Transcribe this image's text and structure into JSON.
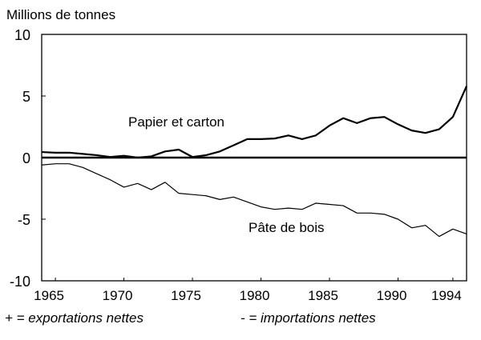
{
  "chart_data": {
    "type": "line",
    "title": "Millions de tonnes",
    "xlabel": "",
    "ylabel": "Millions de tonnes",
    "xlim": [
      1964,
      1995
    ],
    "ylim": [
      -10,
      10
    ],
    "yticks": [
      10,
      5,
      0,
      -5,
      -10
    ],
    "xticks": [
      1965,
      1970,
      1975,
      1980,
      1985,
      1990,
      1994
    ],
    "x": [
      1964,
      1965,
      1966,
      1967,
      1968,
      1969,
      1970,
      1971,
      1972,
      1973,
      1974,
      1975,
      1976,
      1977,
      1978,
      1979,
      1980,
      1981,
      1982,
      1983,
      1984,
      1985,
      1986,
      1987,
      1988,
      1989,
      1990,
      1991,
      1992,
      1993,
      1994,
      1995
    ],
    "series": [
      {
        "name": "Papier et carton",
        "values": [
          0.45,
          0.4,
          0.4,
          0.3,
          0.2,
          0.05,
          0.15,
          0.0,
          0.1,
          0.5,
          0.65,
          0.05,
          0.2,
          0.5,
          1.0,
          1.5,
          1.5,
          1.55,
          1.8,
          1.5,
          1.8,
          2.6,
          3.2,
          2.8,
          3.2,
          3.3,
          2.7,
          2.2,
          2.0,
          2.3,
          3.3,
          5.8
        ]
      },
      {
        "name": "Pâte de bois",
        "values": [
          -0.6,
          -0.5,
          -0.5,
          -0.8,
          -1.3,
          -1.8,
          -2.4,
          -2.1,
          -2.6,
          -2.0,
          -2.9,
          -3.0,
          -3.1,
          -3.4,
          -3.2,
          -3.6,
          -4.0,
          -4.2,
          -4.1,
          -4.2,
          -3.7,
          -3.8,
          -3.9,
          -4.5,
          -4.5,
          -4.6,
          -5.0,
          -5.7,
          -5.5,
          -6.4,
          -5.8,
          -6.2
        ]
      }
    ],
    "annotations": [
      "Papier et carton",
      "Pâte de bois"
    ],
    "legend_note": {
      "plus": "+ = exportations nettes",
      "minus": "- = importations nettes"
    },
    "grid": false
  }
}
